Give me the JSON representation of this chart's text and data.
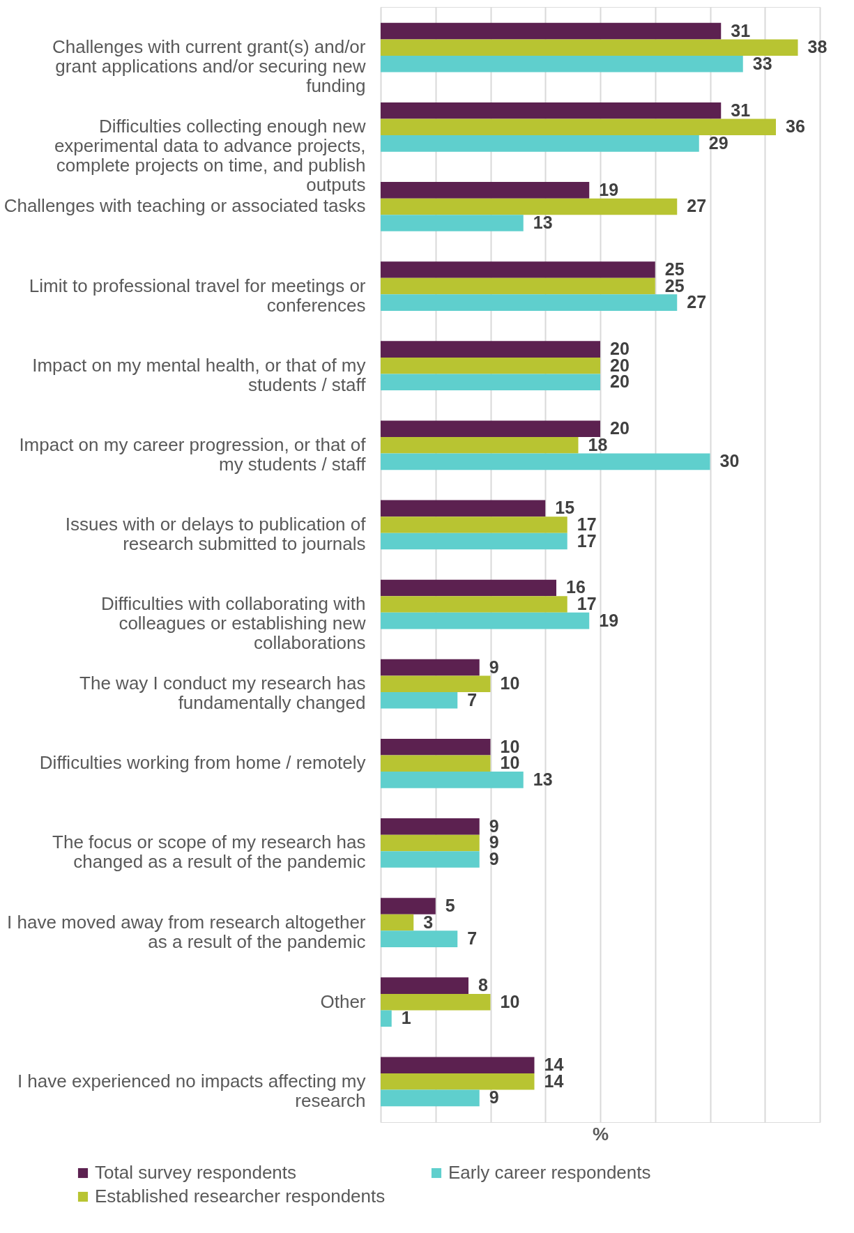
{
  "chart_data": {
    "type": "bar",
    "orientation": "horizontal",
    "xlabel": "%",
    "categories": [
      "Challenges with current grant(s) and/or grant applications and/or securing new funding",
      "Difficulties collecting enough new experimental data to advance projects, complete projects on time, and publish outputs",
      "Challenges with teaching or associated tasks",
      "Limit to professional travel for meetings or conferences",
      "Impact on my mental health, or that of my students / staff",
      "Impact on my career progression, or that of my students / staff",
      "Issues with or delays to publication of research submitted to journals",
      "Difficulties with collaborating with colleagues or establishing new collaborations",
      "The way I conduct my research has fundamentally changed",
      "Difficulties working from home / remotely",
      "The focus or scope of my research has changed as a result of the pandemic",
      "I have moved away from research altogether as a result of the pandemic",
      "Other",
      "I have experienced no impacts affecting my research"
    ],
    "series": [
      {
        "name": "Total survey respondents",
        "color": "#5c2150",
        "values": [
          31,
          31,
          19,
          25,
          20,
          20,
          15,
          16,
          9,
          10,
          9,
          5,
          8,
          14
        ]
      },
      {
        "name": "Established researcher respondents",
        "color": "#b8c432",
        "values": [
          38,
          36,
          27,
          25,
          20,
          18,
          17,
          17,
          10,
          10,
          9,
          3,
          10,
          14
        ]
      },
      {
        "name": "Early career respondents",
        "color": "#5fcfcd",
        "values": [
          33,
          29,
          13,
          27,
          20,
          30,
          17,
          19,
          7,
          13,
          9,
          7,
          1,
          9
        ]
      }
    ],
    "xlim": [
      0,
      40
    ],
    "xticks": [
      {
        "value": 0,
        "label": null
      },
      {
        "value": 5,
        "label": null
      },
      {
        "value": 10,
        "label": null
      },
      {
        "value": 15,
        "label": null
      },
      {
        "value": 20,
        "label": null
      },
      {
        "value": 25,
        "label": null
      },
      {
        "value": 30,
        "label": null
      },
      {
        "value": 35,
        "label": null
      },
      {
        "value": 40,
        "label": null
      }
    ],
    "grid": "x",
    "legend": "bottom",
    "data_labels": true,
    "tick_labels": "y"
  }
}
